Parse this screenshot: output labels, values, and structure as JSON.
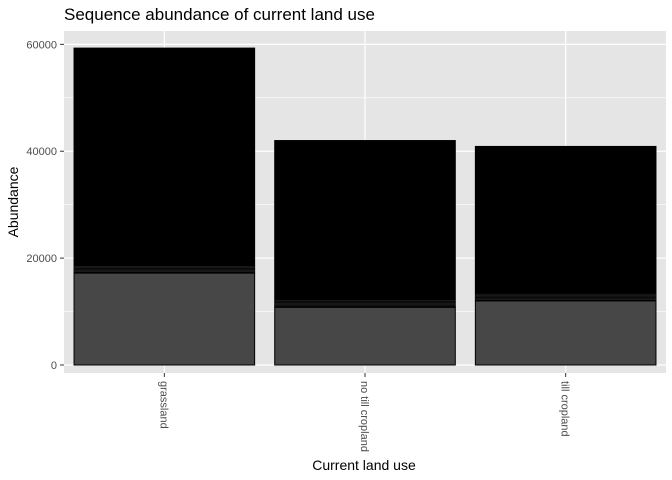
{
  "chart_data": {
    "type": "bar",
    "stacked": true,
    "title": "Sequence abundance of current land use",
    "xlabel": "Current land use",
    "ylabel": "Abundance",
    "categories": [
      "grassland",
      "no till cropland",
      "till cropland"
    ],
    "ylim": [
      -1500,
      62500
    ],
    "yticks": [
      0,
      20000,
      40000,
      60000
    ],
    "ytick_labels": [
      "0",
      "20000",
      "40000",
      "60000"
    ],
    "grid": true,
    "legend": "none",
    "series": [
      {
        "values": [
          17200,
          10800,
          12000
        ]
      },
      {
        "values": [
          42100,
          31200,
          28900
        ]
      }
    ],
    "totals": [
      59300,
      42000,
      40900
    ],
    "colors": {
      "panel_background": "#e5e5e5",
      "grid": "#ffffff",
      "bar_outline": "#000000",
      "bar_fills": [
        "#474747",
        "#000000"
      ]
    }
  }
}
